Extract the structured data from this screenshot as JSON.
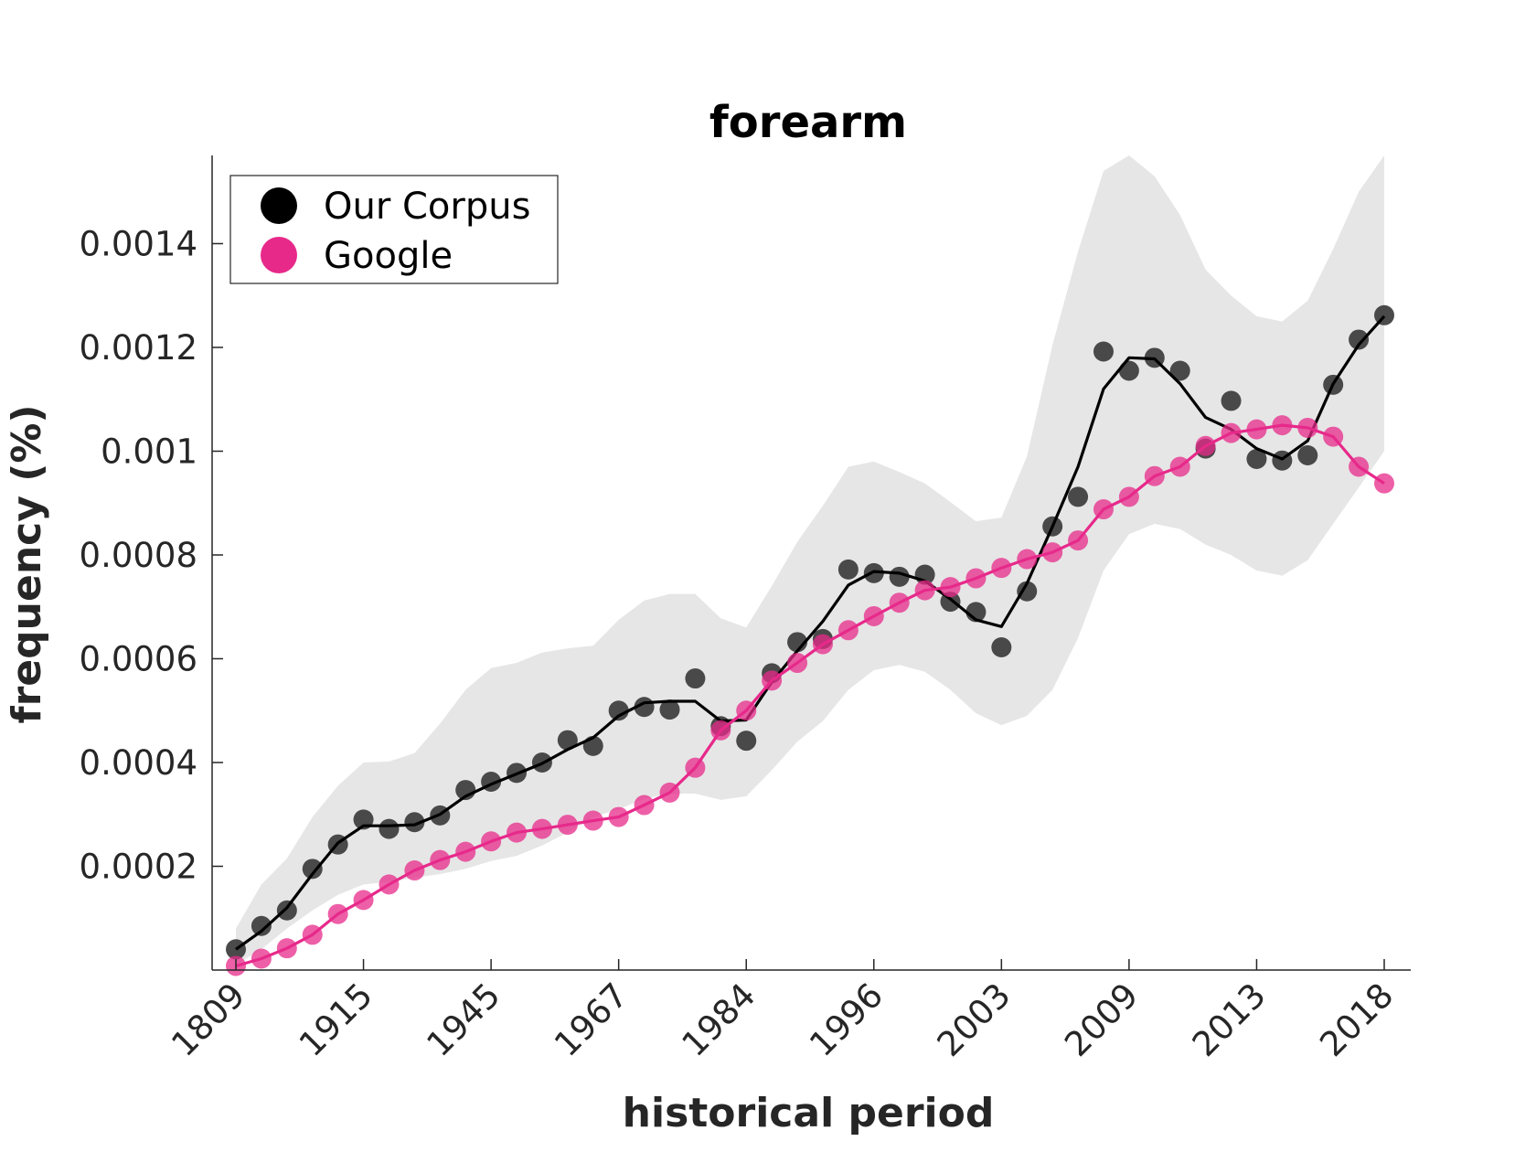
{
  "chart_data": {
    "type": "line",
    "title": "forearm",
    "xlabel": "historical period",
    "ylabel": "frequency (%)",
    "x_tick_labels": [
      "1809",
      "1915",
      "1945",
      "1967",
      "1984",
      "1996",
      "2003",
      "2009",
      "2013",
      "2018"
    ],
    "ylim": [
      0,
      0.00157
    ],
    "y_ticks": [
      0.0002,
      0.0004,
      0.0006,
      0.0008,
      0.001,
      0.0012,
      0.0014
    ],
    "y_tick_labels": [
      "0.0002",
      "0.0004",
      "0.0006",
      "0.0008",
      "0.001",
      "0.0012",
      "0.0014"
    ],
    "legend_position": "top-left",
    "grid": false,
    "series": [
      {
        "name": "Our Corpus",
        "color": "#000000",
        "marker_color": "#404040",
        "points": [
          4e-05,
          8.5e-05,
          0.000115,
          0.000195,
          0.000242,
          0.00029,
          0.000272,
          0.000285,
          0.000298,
          0.000347,
          0.000363,
          0.00038,
          0.0004,
          0.000443,
          0.000432,
          0.0005,
          0.000507,
          0.000502,
          0.000562,
          0.00047,
          0.000442,
          0.000572,
          0.000632,
          0.000638,
          0.000772,
          0.000765,
          0.000758,
          0.000762,
          0.00071,
          0.00069,
          0.000622,
          0.00073,
          0.000855,
          0.000912,
          0.001192,
          0.001155,
          0.00118,
          0.001155,
          0.001005,
          0.001097,
          0.000985,
          0.000982,
          0.000992,
          0.001128,
          0.001215,
          0.001262
        ],
        "smooth": [
          4e-05,
          7.5e-05,
          0.00012,
          0.000185,
          0.000245,
          0.000278,
          0.000278,
          0.00028,
          0.0003,
          0.000335,
          0.000358,
          0.000378,
          0.000398,
          0.000425,
          0.000448,
          0.00049,
          0.000515,
          0.000518,
          0.000518,
          0.00048,
          0.000482,
          0.000555,
          0.000615,
          0.000672,
          0.000742,
          0.000768,
          0.000765,
          0.00075,
          0.000715,
          0.000675,
          0.000662,
          0.000745,
          0.000855,
          0.00097,
          0.00112,
          0.00118,
          0.001178,
          0.00113,
          0.001065,
          0.001042,
          0.001005,
          0.000985,
          0.00102,
          0.00113,
          0.001205,
          0.00126
        ]
      },
      {
        "name": "Google",
        "color": "#e7298a",
        "marker_color": "#e7298a",
        "points": [
          8e-06,
          2.2e-05,
          4.2e-05,
          6.8e-05,
          0.000108,
          0.000135,
          0.000165,
          0.000192,
          0.000212,
          0.000228,
          0.000248,
          0.000265,
          0.000272,
          0.00028,
          0.000288,
          0.000295,
          0.000318,
          0.000342,
          0.00039,
          0.000462,
          0.0005,
          0.000558,
          0.000592,
          0.000628,
          0.000655,
          0.000682,
          0.000708,
          0.000732,
          0.000738,
          0.000755,
          0.000775,
          0.000792,
          0.000805,
          0.000828,
          0.000888,
          0.000912,
          0.000952,
          0.00097,
          0.00101,
          0.001035,
          0.001042,
          0.00105,
          0.001045,
          0.001028,
          0.00097,
          0.000938
        ]
      }
    ],
    "confidence_band": {
      "color": "#e6e6e6",
      "upper": [
        8e-05,
        0.000165,
        0.000215,
        0.000295,
        0.000355,
        0.0004,
        0.000402,
        0.000418,
        0.000475,
        0.00054,
        0.000582,
        0.000592,
        0.000612,
        0.00062,
        0.000625,
        0.000675,
        0.000712,
        0.000725,
        0.000725,
        0.000678,
        0.00066,
        0.00074,
        0.000825,
        0.000895,
        0.00097,
        0.00098,
        0.00096,
        0.000938,
        0.000902,
        0.000865,
        0.000872,
        0.00099,
        0.001205,
        0.001385,
        0.00154,
        0.00157,
        0.00153,
        0.001455,
        0.00135,
        0.0013,
        0.00126,
        0.00125,
        0.00129,
        0.00139,
        0.0015,
        0.00157
      ],
      "lower": [
        1e-05,
        4e-05,
        8e-05,
        0.000115,
        0.000145,
        0.000165,
        0.00017,
        0.000178,
        0.000185,
        0.000195,
        0.00021,
        0.00022,
        0.00024,
        0.000265,
        0.000295,
        0.00031,
        0.00033,
        0.00034,
        0.00034,
        0.000328,
        0.000335,
        0.000385,
        0.00044,
        0.00048,
        0.00054,
        0.000578,
        0.000588,
        0.000575,
        0.00054,
        0.000495,
        0.000472,
        0.00049,
        0.00054,
        0.00064,
        0.00077,
        0.00084,
        0.00086,
        0.00085,
        0.00082,
        0.0008,
        0.00077,
        0.00076,
        0.00079,
        0.00086,
        0.00093,
        0.001
      ]
    }
  }
}
